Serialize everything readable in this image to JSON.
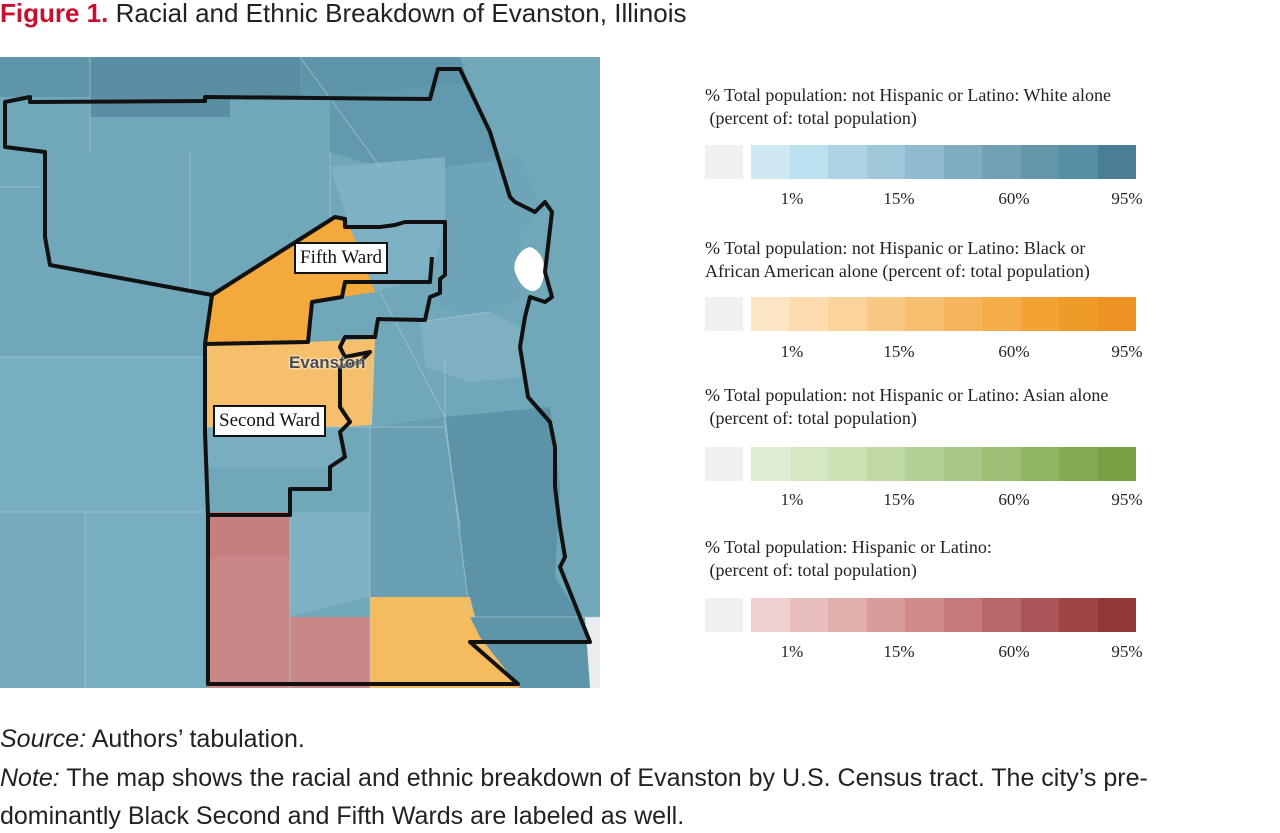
{
  "figure": {
    "number": "Figure 1.",
    "title": "Racial and Ethnic Breakdown of Evanston, Illinois"
  },
  "map": {
    "city_label": "Evanston",
    "ward_labels": [
      "Fifth Ward",
      "Second Ward"
    ]
  },
  "legends": [
    {
      "title": "% Total population: not Hispanic or Latino: White alone\n (percent of: total population)",
      "colors": [
        "#cfe9f3",
        "#bde0ee",
        "#acd3e4",
        "#9ec7da",
        "#8fbacf",
        "#80acc1",
        "#72a0b5",
        "#6496aa",
        "#568ea2",
        "#4a7f93"
      ],
      "ticks": [
        "1%",
        "15%",
        "60%",
        "95%"
      ]
    },
    {
      "title": "% Total population: not Hispanic or Latino: Black or\nAfrican American alone (percent of: total population)",
      "colors": [
        "#fde6c4",
        "#fcdcae",
        "#fbd39b",
        "#f9c984",
        "#f8bf70",
        "#f6b55d",
        "#f5ad4a",
        "#f2a333",
        "#ef9b27",
        "#ed9323"
      ],
      "ticks": [
        "1%",
        "15%",
        "60%",
        "95%"
      ]
    },
    {
      "title": "% Total population: not Hispanic or Latino: Asian alone\n (percent of: total population)",
      "colors": [
        "#e1edd2",
        "#d6e7c3",
        "#cbe0b3",
        "#c0d9a4",
        "#b4d195",
        "#a8c885",
        "#9cbf74",
        "#8fb563",
        "#83ab52",
        "#77a042"
      ],
      "ticks": [
        "1%",
        "15%",
        "60%",
        "95%"
      ]
    },
    {
      "title": "% Total population: Hispanic or Latino:\n (percent of: total population)",
      "colors": [
        "#efcfcf",
        "#e8bdbd",
        "#e1aeae",
        "#d99c9c",
        "#cf8a8a",
        "#c47a7a",
        "#b86868",
        "#ab5656",
        "#9e4545",
        "#923636"
      ],
      "ticks": [
        "1%",
        "15%",
        "60%",
        "95%"
      ]
    }
  ],
  "footer": {
    "source_label": "Source:",
    "source_text": " Authors’ tabulation.",
    "note_label": "Note:",
    "note_line1": " The map shows the racial and ethnic breakdown of Evanston by U.S. Census tract. The city’s pre-",
    "note_line2": "dominantly Black Second and Fifth Wards are labeled as well."
  }
}
